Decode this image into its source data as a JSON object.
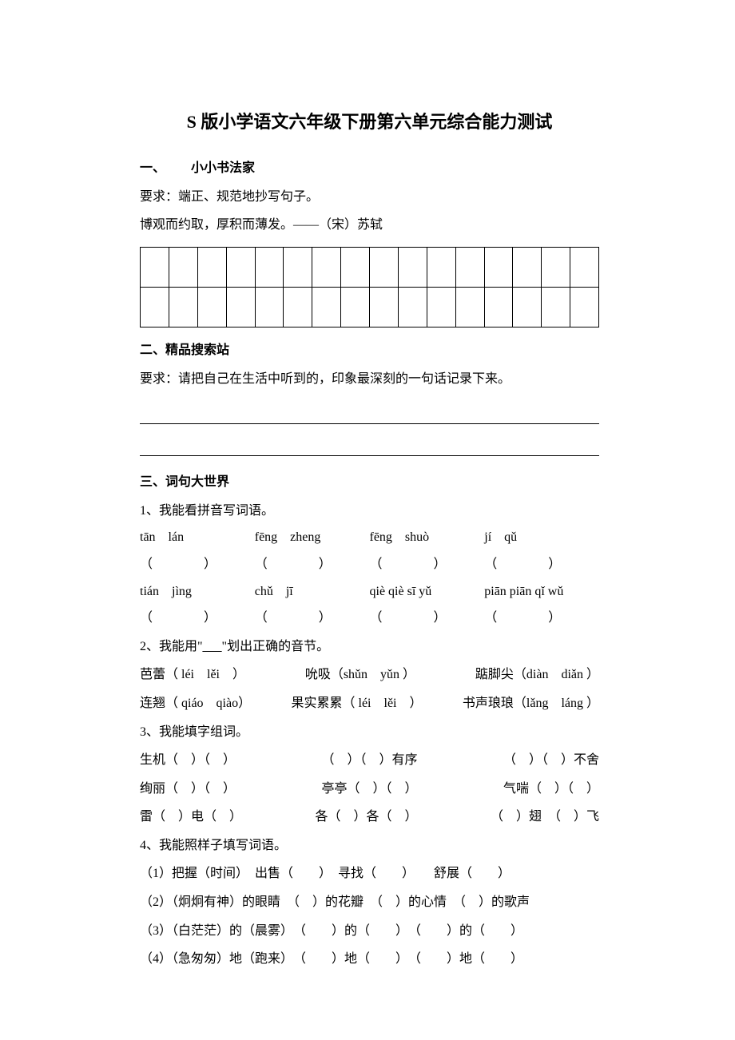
{
  "title": "S 版小学语文六年级下册第六单元综合能力测试",
  "section1": {
    "header": "一、",
    "title": "小小书法家",
    "req": "要求：端正、规范地抄写句子。",
    "quote": "博观而约取，厚积而薄发。——（宋）苏轼",
    "grid_cols": 16,
    "grid_rows": 2
  },
  "section2": {
    "header": "二、",
    "title": "精品搜索站",
    "req": "要求：请把自己在生活中听到的，印象最深刻的一句话记录下来。"
  },
  "section3": {
    "header": "三、词句大世界",
    "q1": {
      "label": "1、我能看拼音写词语。",
      "row1": {
        "p1": "tān　lán",
        "p2": "fēng　zheng",
        "p3": "fēng　shuò",
        "p4": "jí　qǔ"
      },
      "row2": {
        "p1": "tián　jìng",
        "p2": "chǔ　jī",
        "p3": "qiè qiè sī yǔ",
        "p4": "piān piān qǐ wǔ"
      },
      "paren": "（　　　　）"
    },
    "q2": {
      "label_pre": "2、我能用\"",
      "label_mid": "___",
      "label_post": "\"划出正确的音节。",
      "line1": {
        "a": "芭蕾（ léi　lěi　）",
        "b": "吮吸（shǔn　yǔn ）",
        "c": "踮脚尖（diàn　diǎn ）"
      },
      "line2": {
        "a": "连翘（ qiáo　qiào）",
        "b": "果实累累（ léi　lěi　）",
        "c": "书声琅琅（lǎng　láng ）"
      }
    },
    "q3": {
      "label": "3、我能填字组词。",
      "line1": {
        "a": "生机（　）（　）",
        "b": "（　）（　）有序",
        "c": "（　）（　）不舍"
      },
      "line2": {
        "a": "绚丽（　）（　）",
        "b": "亭亭（　）（　）",
        "c": "气喘（　）（　）"
      },
      "line3": {
        "a": "雷（　）电（　）",
        "b": "各（　）各（　）",
        "c": "（　）翅　（　）飞"
      }
    },
    "q4": {
      "label": "4、我能照样子填写词语。",
      "l1": "（1）把握（时间）　出售（　　）　寻找（　　）　　舒展（　　）",
      "l2": "（2）（炯炯有神）的眼睛　（　）的花瓣　（　）的心情　（　）的歌声",
      "l3": "（3）（白茫茫）的（晨雾）　（　　）的（　　）　（　　）的（　　）",
      "l4": "（4）（急匆匆）地（跑来）　（　　）地（　　）　（　　）地（　　）"
    }
  }
}
